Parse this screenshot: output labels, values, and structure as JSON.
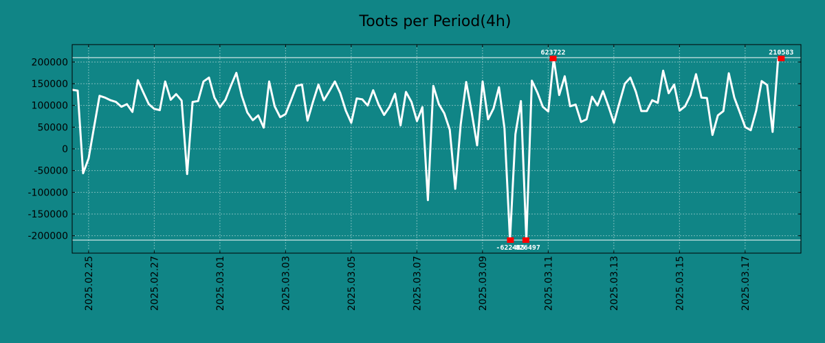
{
  "chart_data": {
    "type": "line",
    "title": "Toots per Period(4h)",
    "xlabel": "",
    "ylabel": "",
    "ylim": [
      -240000,
      240000
    ],
    "y_ticks": [
      -200000,
      -150000,
      -100000,
      -50000,
      0,
      50000,
      100000,
      150000,
      200000
    ],
    "y_tick_labels": [
      "-200000",
      "-150000",
      "-100000",
      "-50000",
      "0",
      "50000",
      "100000",
      "150000",
      "200000"
    ],
    "x_range_days": [
      0,
      22.2
    ],
    "x_ticks": [
      {
        "day": 0.5,
        "label": "2025.02.25"
      },
      {
        "day": 2.5,
        "label": "2025.02.27"
      },
      {
        "day": 4.5,
        "label": "2025.03.01"
      },
      {
        "day": 6.5,
        "label": "2025.03.03"
      },
      {
        "day": 8.5,
        "label": "2025.03.05"
      },
      {
        "day": 10.5,
        "label": "2025.03.07"
      },
      {
        "day": 12.5,
        "label": "2025.03.09"
      },
      {
        "day": 14.5,
        "label": "2025.03.11"
      },
      {
        "day": 16.5,
        "label": "2025.03.13"
      },
      {
        "day": 18.5,
        "label": "2025.03.15"
      },
      {
        "day": 20.5,
        "label": "2025.03.17"
      }
    ],
    "reference_lines": [
      210000,
      -210000
    ],
    "series": [
      {
        "name": "Toots",
        "color": "#ffffff",
        "x_start_day": 0.0,
        "x_step_days": 0.1667,
        "values": [
          136000,
          134000,
          -56000,
          -22000,
          50000,
          122000,
          118000,
          112000,
          108000,
          97000,
          103000,
          85000,
          158000,
          130000,
          103000,
          92000,
          89000,
          155000,
          113000,
          126000,
          111000,
          -58000,
          108000,
          110000,
          155000,
          164000,
          118000,
          96000,
          113000,
          145000,
          175000,
          122000,
          84000,
          66000,
          77000,
          49000,
          155000,
          98000,
          73000,
          80000,
          112000,
          145000,
          148000,
          65000,
          108000,
          148000,
          112000,
          133000,
          155000,
          128000,
          88000,
          60000,
          116000,
          114000,
          100000,
          135000,
          102000,
          78000,
          97000,
          127000,
          54000,
          131000,
          108000,
          64000,
          96000,
          -118000,
          145000,
          103000,
          82000,
          44000,
          -92000,
          56000,
          154000,
          85000,
          8000,
          155000,
          68000,
          93000,
          142000,
          47000,
          -210000,
          34000,
          110000,
          -210000,
          157000,
          130000,
          97000,
          86000,
          208000,
          124000,
          167000,
          98000,
          102000,
          62000,
          68000,
          120000,
          100000,
          133000,
          98000,
          60000,
          106000,
          150000,
          164000,
          132000,
          87000,
          87000,
          112000,
          106000,
          180000,
          128000,
          148000,
          88000,
          98000,
          124000,
          172000,
          118000,
          117000,
          32000,
          77000,
          87000,
          174000,
          118000,
          84000,
          50000,
          43000,
          88000,
          156000,
          147000,
          39000,
          208000
        ]
      }
    ],
    "annotations": [
      {
        "label": "623722",
        "day": 14.65,
        "value": 208000,
        "position": "above"
      },
      {
        "label": "210583",
        "day": 21.6,
        "value": 208000,
        "position": "above"
      },
      {
        "label": "-622485",
        "day": 13.35,
        "value": -210000,
        "position": "below"
      },
      {
        "label": "-826497",
        "day": 13.82,
        "value": -210000,
        "position": "below"
      }
    ]
  }
}
